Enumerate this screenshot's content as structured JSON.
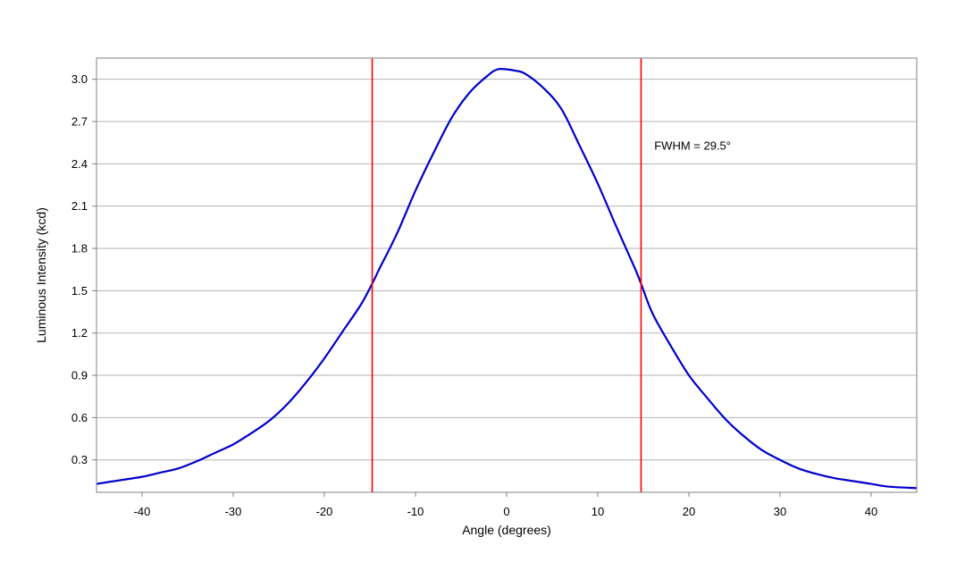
{
  "chart_data": {
    "type": "line",
    "title": "",
    "xlabel": "Angle (degrees)",
    "ylabel": "Luminous Intensity (kcd)",
    "xlim": [
      -45,
      45
    ],
    "ylim": [
      0.07,
      3.15
    ],
    "x_ticks": [
      -40,
      -30,
      -20,
      -10,
      0,
      10,
      20,
      30,
      40
    ],
    "x_tick_labels": [
      "-40",
      "-30",
      "-20",
      "-10",
      "0",
      "10",
      "20",
      "30",
      "40"
    ],
    "y_ticks": [
      0.3,
      0.6,
      0.9,
      1.2,
      1.5,
      1.8,
      2.1,
      2.4,
      2.7,
      3.0
    ],
    "y_tick_labels": [
      "0.3",
      "0.6",
      "0.9",
      "1.2",
      "1.5",
      "1.8",
      "2.1",
      "2.4",
      "2.7",
      "3.0"
    ],
    "grid": true,
    "grid_axis": "y",
    "series": [
      {
        "color": "#0000cc",
        "x": [
          -45,
          -42,
          -40,
          -38,
          -36,
          -34,
          -32,
          -30,
          -28,
          -26,
          -24,
          -22,
          -20,
          -18,
          -16,
          -14.75,
          -14,
          -12,
          -10,
          -8,
          -6,
          -4,
          -2,
          -1,
          0,
          1,
          2,
          4,
          6,
          8,
          10,
          12,
          14,
          14.75,
          16,
          18,
          20,
          22,
          24,
          26,
          28,
          30,
          32,
          34,
          36,
          38,
          40,
          42,
          45
        ],
        "y": [
          0.13,
          0.16,
          0.18,
          0.21,
          0.24,
          0.29,
          0.35,
          0.41,
          0.49,
          0.58,
          0.7,
          0.85,
          1.02,
          1.21,
          1.4,
          1.55,
          1.65,
          1.91,
          2.21,
          2.48,
          2.73,
          2.91,
          3.03,
          3.07,
          3.07,
          3.06,
          3.04,
          2.94,
          2.79,
          2.53,
          2.26,
          1.96,
          1.67,
          1.55,
          1.34,
          1.11,
          0.9,
          0.74,
          0.59,
          0.47,
          0.37,
          0.3,
          0.24,
          0.2,
          0.17,
          0.15,
          0.13,
          0.11,
          0.1
        ]
      }
    ],
    "reference_lines": [
      {
        "x": -14.75,
        "color": "#ff0000"
      },
      {
        "x": 14.75,
        "color": "#ff0000"
      }
    ],
    "annotations": [
      {
        "text": "FWHM = 29.5°",
        "x": 16.2,
        "y": 2.53
      }
    ]
  }
}
